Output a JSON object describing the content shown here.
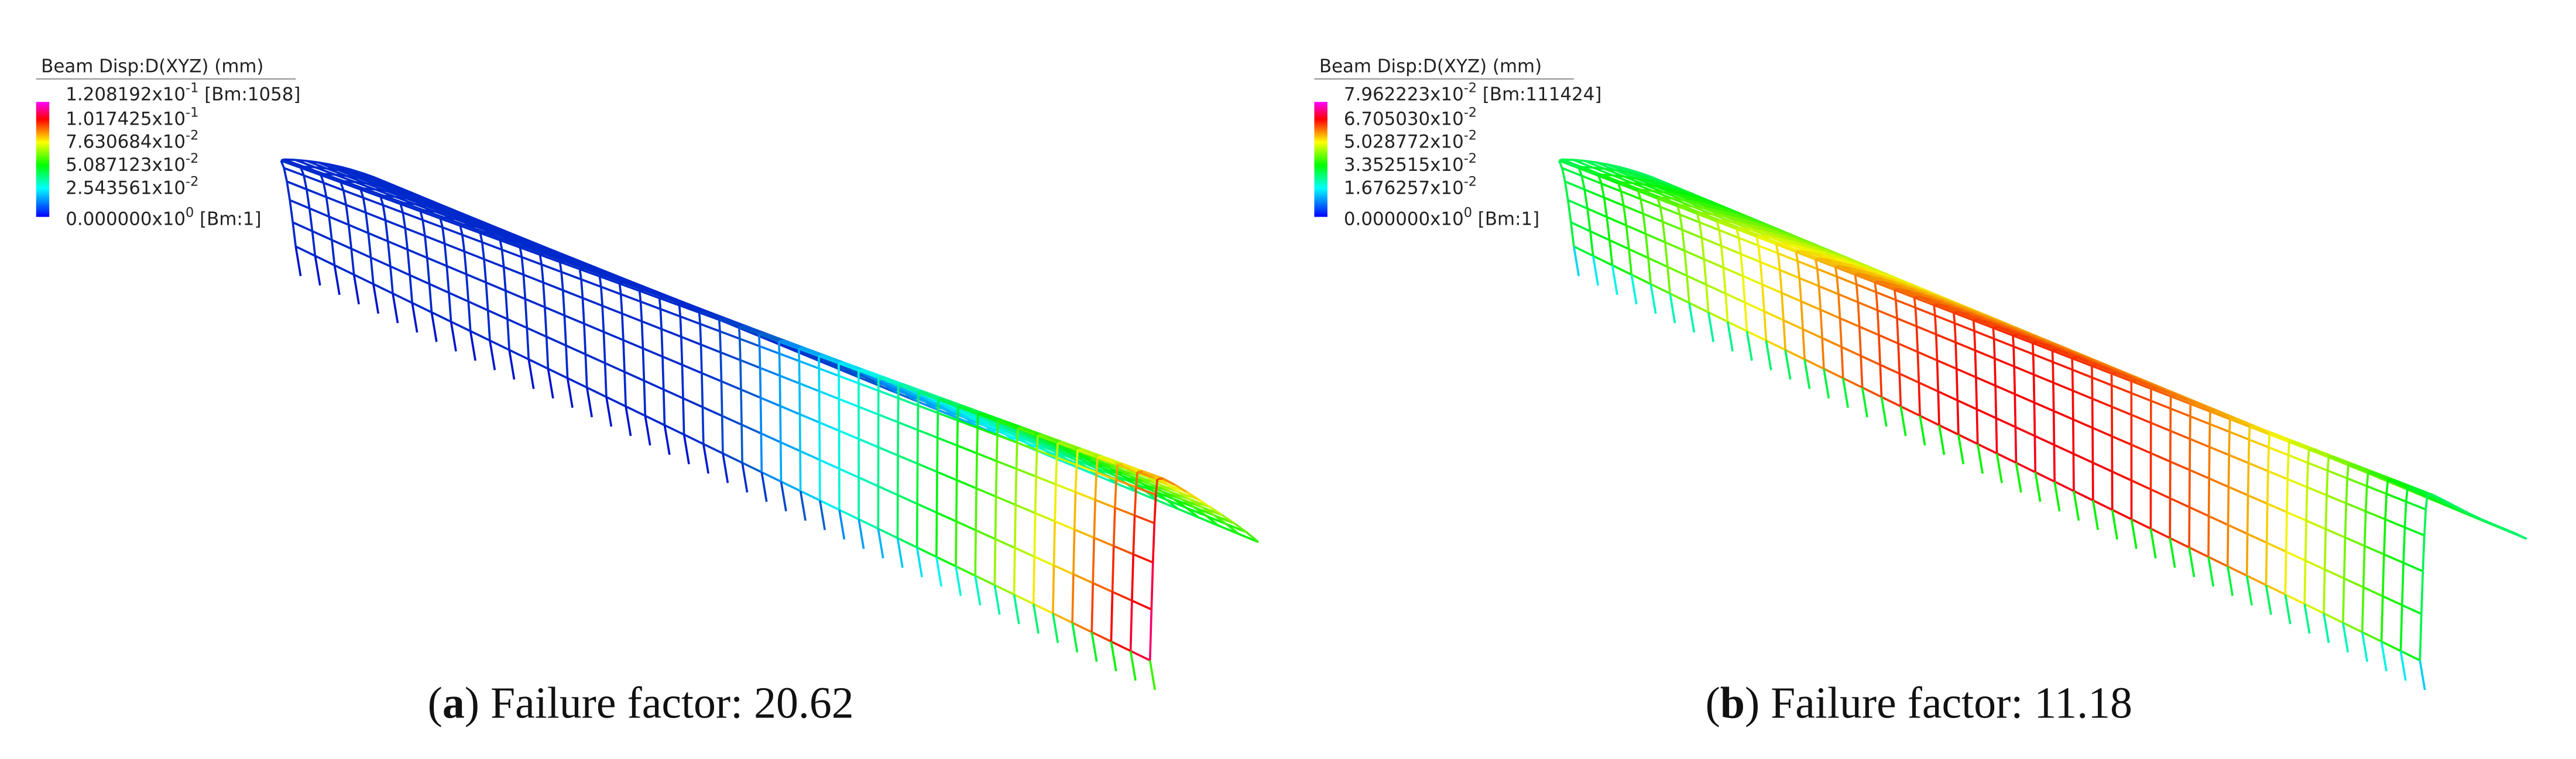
{
  "panels": [
    {
      "legend": {
        "title": "Beam Disp:D(XYZ)  (mm)",
        "labels": [
          {
            "mantissa": "1.208192x10",
            "exponent": "-1",
            "suffix": " [Bm:1058]"
          },
          {
            "mantissa": "1.017425x10",
            "exponent": "-1",
            "suffix": ""
          },
          {
            "mantissa": "7.630684x10",
            "exponent": "-2",
            "suffix": ""
          },
          {
            "mantissa": "5.087123x10",
            "exponent": "-2",
            "suffix": ""
          },
          {
            "mantissa": "2.543561x10",
            "exponent": "-2",
            "suffix": ""
          },
          {
            "mantissa": "0.000000x10",
            "exponent": "0",
            "suffix": " [Bm:1]"
          }
        ]
      },
      "caption": {
        "open": "(",
        "label": "a",
        "rest": ") Failure factor: 20.62"
      }
    },
    {
      "legend": {
        "title": "Beam Disp:D(XYZ)  (mm)",
        "labels": [
          {
            "mantissa": "7.962223x10",
            "exponent": "-2",
            "suffix": " [Bm:111424]"
          },
          {
            "mantissa": "6.705030x10",
            "exponent": "-2",
            "suffix": ""
          },
          {
            "mantissa": "5.028772x10",
            "exponent": "-2",
            "suffix": ""
          },
          {
            "mantissa": "3.352515x10",
            "exponent": "-2",
            "suffix": ""
          },
          {
            "mantissa": "1.676257x10",
            "exponent": "-2",
            "suffix": ""
          },
          {
            "mantissa": "0.000000x10",
            "exponent": "0",
            "suffix": " [Bm:1]"
          }
        ]
      },
      "caption": {
        "open": "(",
        "label": "b",
        "rest": ") Failure factor: 11.18"
      }
    }
  ]
}
